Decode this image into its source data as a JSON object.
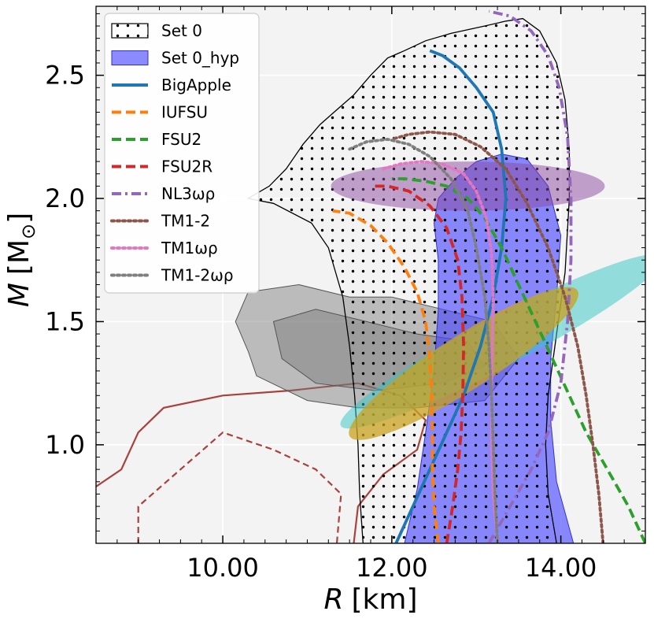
{
  "chart_data": {
    "type": "line",
    "xlabel_var": "R",
    "xlabel_unit": "[km]",
    "ylabel_var": "M",
    "ylabel_unit_open": "[M",
    "ylabel_unit_sub": "⊙",
    "ylabel_unit_close": "]",
    "xlim": [
      8.5,
      15.0
    ],
    "ylim": [
      0.6,
      2.78
    ],
    "xticks": [
      10.0,
      12.0,
      14.0
    ],
    "xtick_labels": [
      "10.00",
      "12.00",
      "14.00"
    ],
    "yticks": [
      1.0,
      1.5,
      2.0,
      2.5
    ],
    "ytick_labels": [
      "1.0",
      "1.5",
      "2.0",
      "2.5"
    ],
    "grid": true,
    "legend_position": "top-left",
    "bands": [
      {
        "name": "Set 0",
        "style": "hatched",
        "color": "#000000",
        "polygon": [
          [
            11.66,
            0.6
          ],
          [
            11.62,
            0.8
          ],
          [
            11.6,
            1.0
          ],
          [
            11.56,
            1.2
          ],
          [
            11.5,
            1.4
          ],
          [
            11.42,
            1.6
          ],
          [
            11.25,
            1.8
          ],
          [
            11.05,
            1.9
          ],
          [
            10.6,
            1.98
          ],
          [
            10.3,
            2.0
          ],
          [
            10.55,
            2.05
          ],
          [
            10.75,
            2.12
          ],
          [
            10.95,
            2.22
          ],
          [
            11.15,
            2.3
          ],
          [
            11.35,
            2.36
          ],
          [
            11.55,
            2.42
          ],
          [
            11.75,
            2.5
          ],
          [
            11.95,
            2.57
          ],
          [
            12.15,
            2.6
          ],
          [
            12.4,
            2.64
          ],
          [
            12.7,
            2.67
          ],
          [
            13.1,
            2.7
          ],
          [
            13.35,
            2.72
          ],
          [
            13.55,
            2.73
          ],
          [
            13.75,
            2.68
          ],
          [
            13.95,
            2.55
          ],
          [
            14.05,
            2.4
          ],
          [
            14.1,
            2.2
          ],
          [
            14.1,
            2.0
          ],
          [
            14.05,
            1.7
          ],
          [
            13.95,
            1.45
          ],
          [
            13.85,
            1.2
          ],
          [
            13.82,
            1.0
          ],
          [
            13.85,
            0.8
          ],
          [
            13.95,
            0.6
          ]
        ]
      },
      {
        "name": "Set 0_hyp",
        "style": "filled",
        "color": "#4444ff",
        "polygon": [
          [
            12.15,
            0.6
          ],
          [
            12.3,
            0.82
          ],
          [
            12.4,
            1.05
          ],
          [
            12.5,
            1.3
          ],
          [
            12.55,
            1.55
          ],
          [
            12.55,
            1.75
          ],
          [
            12.5,
            1.9
          ],
          [
            12.55,
            2.0
          ],
          [
            12.75,
            2.08
          ],
          [
            13.0,
            2.15
          ],
          [
            13.3,
            2.18
          ],
          [
            13.6,
            2.16
          ],
          [
            13.85,
            2.05
          ],
          [
            14.0,
            1.85
          ],
          [
            13.95,
            1.6
          ],
          [
            13.88,
            1.35
          ],
          [
            13.88,
            1.1
          ],
          [
            13.95,
            0.85
          ],
          [
            14.15,
            0.6
          ]
        ]
      }
    ],
    "constraints": [
      {
        "label": "",
        "color": "#8b4aa0",
        "alpha": 0.5,
        "cx": 12.9,
        "cy": 2.05,
        "rx": 1.62,
        "ry": 0.1,
        "angle": 0
      },
      {
        "label": "",
        "color": "#34c6c6",
        "alpha": 0.5,
        "cx": 13.3,
        "cy": 1.42,
        "rx": 2.15,
        "ry": 0.1,
        "angle": 0.18
      },
      {
        "label": "",
        "color": "#c9a21f",
        "alpha": 0.75,
        "cx": 12.85,
        "cy": 1.33,
        "rx": 1.6,
        "ry": 0.11,
        "angle": 0.22
      }
    ],
    "contours": [
      {
        "label": "",
        "color": "#777777",
        "alpha": 0.45,
        "polygon": [
          [
            10.3,
            1.62
          ],
          [
            10.9,
            1.65
          ],
          [
            11.5,
            1.6
          ],
          [
            12.0,
            1.6
          ],
          [
            12.6,
            1.55
          ],
          [
            13.2,
            1.5
          ],
          [
            13.5,
            1.35
          ],
          [
            13.1,
            1.18
          ],
          [
            12.3,
            1.15
          ],
          [
            11.6,
            1.15
          ],
          [
            11.0,
            1.18
          ],
          [
            10.4,
            1.28
          ],
          [
            10.3,
            1.38
          ],
          [
            10.15,
            1.5
          ]
        ]
      },
      {
        "label": "",
        "color": "#777777",
        "alpha": 0.45,
        "polygon": [
          [
            10.6,
            1.5
          ],
          [
            11.1,
            1.55
          ],
          [
            11.7,
            1.5
          ],
          [
            12.3,
            1.45
          ],
          [
            12.9,
            1.42
          ],
          [
            13.1,
            1.32
          ],
          [
            12.6,
            1.25
          ],
          [
            11.8,
            1.22
          ],
          [
            11.1,
            1.25
          ],
          [
            10.7,
            1.35
          ]
        ]
      }
    ],
    "outline_contours": [
      {
        "label": "",
        "color": "#a8423f",
        "dashed": false,
        "points": [
          [
            8.5,
            0.83
          ],
          [
            8.8,
            0.9
          ],
          [
            9.0,
            1.05
          ],
          [
            9.3,
            1.15
          ],
          [
            10.0,
            1.2
          ],
          [
            10.8,
            1.22
          ],
          [
            11.6,
            1.25
          ],
          [
            12.1,
            1.2
          ],
          [
            12.4,
            1.1
          ],
          [
            12.3,
            0.98
          ],
          [
            11.9,
            0.88
          ],
          [
            11.6,
            0.75
          ],
          [
            11.55,
            0.6
          ]
        ]
      },
      {
        "label": "",
        "color": "#a8423f",
        "dashed": true,
        "points": [
          [
            9.0,
            0.6
          ],
          [
            9.0,
            0.75
          ],
          [
            9.5,
            0.9
          ],
          [
            10.0,
            1.05
          ],
          [
            10.6,
            0.98
          ],
          [
            11.1,
            0.9
          ],
          [
            11.4,
            0.8
          ],
          [
            11.35,
            0.6
          ]
        ]
      }
    ],
    "series": [
      {
        "name": "BigApple",
        "color": "#1f77b4",
        "dash": "solid",
        "x": [
          12.05,
          12.25,
          12.45,
          12.65,
          12.85,
          13.05,
          13.2,
          13.3,
          13.35,
          13.3,
          13.2,
          13.0,
          12.8,
          12.6,
          12.45
        ],
        "y": [
          0.6,
          0.75,
          0.9,
          1.05,
          1.2,
          1.4,
          1.6,
          1.8,
          2.0,
          2.2,
          2.35,
          2.45,
          2.53,
          2.58,
          2.6
        ]
      },
      {
        "name": "IUFSU",
        "color": "#ff7f0e",
        "dash": "dashed",
        "x": [
          12.55,
          12.5,
          12.48,
          12.48,
          12.47,
          12.45,
          12.4,
          12.3,
          12.15,
          11.95,
          11.75,
          11.5,
          11.3
        ],
        "y": [
          0.6,
          0.75,
          0.9,
          1.05,
          1.2,
          1.35,
          1.5,
          1.62,
          1.72,
          1.82,
          1.89,
          1.94,
          1.95
        ]
      },
      {
        "name": "FSU2",
        "color": "#2ca02c",
        "dash": "dashed",
        "x": [
          15.0,
          14.8,
          14.55,
          14.3,
          14.1,
          13.9,
          13.7,
          13.5,
          13.3,
          13.1,
          12.9,
          12.65,
          12.4,
          12.15,
          12.0
        ],
        "y": [
          0.6,
          0.75,
          0.9,
          1.05,
          1.2,
          1.35,
          1.5,
          1.65,
          1.8,
          1.92,
          2.0,
          2.05,
          2.07,
          2.08,
          2.08
        ]
      },
      {
        "name": "FSU2R",
        "color": "#d62728",
        "dash": "dashed",
        "x": [
          12.65,
          12.72,
          12.78,
          12.82,
          12.84,
          12.85,
          12.83,
          12.78,
          12.65,
          12.45,
          12.2,
          11.95,
          11.75
        ],
        "y": [
          0.6,
          0.75,
          0.9,
          1.05,
          1.2,
          1.4,
          1.6,
          1.75,
          1.88,
          1.97,
          2.03,
          2.05,
          2.05
        ]
      },
      {
        "name": "NL3ωρ",
        "color": "#9467bd",
        "dash": "dashdot",
        "x": [
          13.15,
          13.4,
          13.65,
          13.85,
          14.0,
          14.08,
          14.12,
          14.12,
          14.08,
          13.98,
          13.85,
          13.65,
          13.4,
          13.15
        ],
        "y": [
          0.6,
          0.75,
          0.9,
          1.05,
          1.25,
          1.5,
          1.75,
          2.0,
          2.25,
          2.45,
          2.58,
          2.68,
          2.74,
          2.76
        ]
      },
      {
        "name": "TM1-2",
        "color": "#8c564b",
        "dash": "dotted",
        "x": [
          14.5,
          14.45,
          14.38,
          14.3,
          14.2,
          14.05,
          13.85,
          13.6,
          13.35,
          13.05,
          12.75,
          12.45,
          12.2,
          12.0
        ],
        "y": [
          0.6,
          0.8,
          1.0,
          1.2,
          1.4,
          1.6,
          1.8,
          1.98,
          2.12,
          2.21,
          2.26,
          2.27,
          2.26,
          2.24
        ]
      },
      {
        "name": "TM1ωρ",
        "color": "#e377c2",
        "dash": "dotted",
        "x": [
          13.25,
          13.2,
          13.18,
          13.18,
          13.19,
          13.2,
          13.18,
          13.12,
          13.0,
          12.85,
          12.6,
          12.35,
          12.1,
          11.9
        ],
        "y": [
          0.6,
          0.8,
          1.0,
          1.2,
          1.4,
          1.6,
          1.78,
          1.92,
          2.03,
          2.1,
          2.14,
          2.15,
          2.14,
          2.12
        ]
      },
      {
        "name": "TM1-2ωρ",
        "color": "#7f7f7f",
        "dash": "dotted",
        "x": [
          13.25,
          13.22,
          13.2,
          13.18,
          13.15,
          13.1,
          13.0,
          12.9,
          12.7,
          12.45,
          12.2,
          11.95,
          11.7,
          11.5
        ],
        "y": [
          0.6,
          0.8,
          1.0,
          1.2,
          1.4,
          1.6,
          1.8,
          1.95,
          2.08,
          2.17,
          2.22,
          2.24,
          2.23,
          2.2
        ]
      }
    ]
  }
}
